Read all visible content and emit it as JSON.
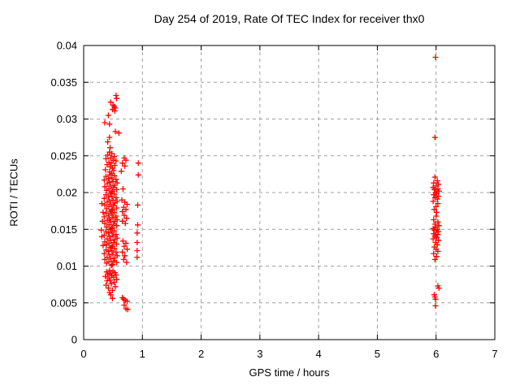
{
  "chart_data": {
    "type": "scatter",
    "title": "Day 254 of 2019, Rate Of TEC Index for receiver thx0",
    "xlabel": "GPS time / hours",
    "ylabel": "ROTI / TECUs",
    "xlim": [
      0,
      7
    ],
    "ylim": [
      0,
      0.04
    ],
    "xticks": [
      0,
      1,
      2,
      3,
      4,
      5,
      6,
      7
    ],
    "xtick_labels": [
      "0",
      "1",
      "2",
      "3",
      "4",
      "5",
      "6",
      "7"
    ],
    "yticks": [
      0,
      0.005,
      0.01,
      0.015,
      0.02,
      0.025,
      0.03,
      0.035,
      0.04
    ],
    "ytick_labels": [
      "0",
      "0.005",
      "0.01",
      "0.015",
      "0.02",
      "0.025",
      "0.03",
      "0.035",
      "0.04"
    ],
    "grid": true,
    "legend_position": "none",
    "marker": {
      "shape": "plus",
      "size": 7,
      "color": "#ff0000"
    },
    "colors": {
      "background": "#ffffff",
      "border": "#000000",
      "grid": "#a0a0a0",
      "text": "#000000"
    },
    "series": [
      {
        "name": "ROTI",
        "points": [
          [
            0.55,
            0.0332
          ],
          [
            0.56,
            0.0328
          ],
          [
            0.46,
            0.0323
          ],
          [
            0.5,
            0.0319
          ],
          [
            0.52,
            0.0317
          ],
          [
            0.54,
            0.0315
          ],
          [
            0.49,
            0.0313
          ],
          [
            0.53,
            0.0311
          ],
          [
            0.42,
            0.0305
          ],
          [
            0.36,
            0.0295
          ],
          [
            0.44,
            0.0293
          ],
          [
            0.54,
            0.0283
          ],
          [
            0.6,
            0.0281
          ],
          [
            0.44,
            0.0275
          ],
          [
            0.41,
            0.0269
          ],
          [
            0.45,
            0.0261
          ],
          [
            0.44,
            0.0255
          ],
          [
            0.48,
            0.0253
          ],
          [
            0.41,
            0.0251
          ],
          [
            0.52,
            0.0249
          ],
          [
            0.46,
            0.0247
          ],
          [
            0.38,
            0.0246
          ],
          [
            0.5,
            0.0244
          ],
          [
            0.55,
            0.0243
          ],
          [
            0.43,
            0.0241
          ],
          [
            0.47,
            0.024
          ],
          [
            0.4,
            0.0238
          ],
          [
            0.53,
            0.0237
          ],
          [
            0.45,
            0.0235
          ],
          [
            0.49,
            0.0233
          ],
          [
            0.37,
            0.0231
          ],
          [
            0.51,
            0.023
          ],
          [
            0.44,
            0.0228
          ],
          [
            0.48,
            0.0226
          ],
          [
            0.45,
            0.0224
          ],
          [
            0.52,
            0.0223
          ],
          [
            0.38,
            0.0222
          ],
          [
            0.48,
            0.022
          ],
          [
            0.42,
            0.0219
          ],
          [
            0.55,
            0.0218
          ],
          [
            0.35,
            0.0217
          ],
          [
            0.5,
            0.0215
          ],
          [
            0.44,
            0.0214
          ],
          [
            0.57,
            0.0213
          ],
          [
            0.4,
            0.0212
          ],
          [
            0.53,
            0.021
          ],
          [
            0.46,
            0.0209
          ],
          [
            0.36,
            0.0208
          ],
          [
            0.51,
            0.0207
          ],
          [
            0.43,
            0.0205
          ],
          [
            0.56,
            0.0204
          ],
          [
            0.39,
            0.0203
          ],
          [
            0.49,
            0.0202
          ],
          [
            0.47,
            0.02
          ],
          [
            0.45,
            0.0199
          ],
          [
            0.52,
            0.0198
          ],
          [
            0.38,
            0.0197
          ],
          [
            0.48,
            0.0195
          ],
          [
            0.42,
            0.0194
          ],
          [
            0.55,
            0.0193
          ],
          [
            0.35,
            0.0192
          ],
          [
            0.5,
            0.019
          ],
          [
            0.44,
            0.0189
          ],
          [
            0.57,
            0.0188
          ],
          [
            0.4,
            0.0187
          ],
          [
            0.53,
            0.0186
          ],
          [
            0.46,
            0.0184
          ],
          [
            0.36,
            0.0183
          ],
          [
            0.51,
            0.0182
          ],
          [
            0.43,
            0.0181
          ],
          [
            0.56,
            0.0179
          ],
          [
            0.39,
            0.0178
          ],
          [
            0.49,
            0.0177
          ],
          [
            0.47,
            0.0176
          ],
          [
            0.45,
            0.0174
          ],
          [
            0.52,
            0.0173
          ],
          [
            0.38,
            0.0172
          ],
          [
            0.48,
            0.0171
          ],
          [
            0.42,
            0.0169
          ],
          [
            0.55,
            0.0168
          ],
          [
            0.35,
            0.0167
          ],
          [
            0.5,
            0.0166
          ],
          [
            0.44,
            0.0164
          ],
          [
            0.57,
            0.0163
          ],
          [
            0.4,
            0.0162
          ],
          [
            0.53,
            0.0161
          ],
          [
            0.46,
            0.016
          ],
          [
            0.36,
            0.0158
          ],
          [
            0.51,
            0.0157
          ],
          [
            0.43,
            0.0156
          ],
          [
            0.56,
            0.0155
          ],
          [
            0.39,
            0.0153
          ],
          [
            0.49,
            0.0152
          ],
          [
            0.47,
            0.0151
          ],
          [
            0.45,
            0.015
          ],
          [
            0.52,
            0.0148
          ],
          [
            0.38,
            0.0147
          ],
          [
            0.48,
            0.0146
          ],
          [
            0.42,
            0.0145
          ],
          [
            0.55,
            0.0143
          ],
          [
            0.35,
            0.0142
          ],
          [
            0.5,
            0.0141
          ],
          [
            0.44,
            0.014
          ],
          [
            0.57,
            0.0138
          ],
          [
            0.4,
            0.0137
          ],
          [
            0.53,
            0.0136
          ],
          [
            0.46,
            0.0135
          ],
          [
            0.36,
            0.0133
          ],
          [
            0.51,
            0.0132
          ],
          [
            0.43,
            0.0131
          ],
          [
            0.56,
            0.013
          ],
          [
            0.39,
            0.0129
          ],
          [
            0.49,
            0.0127
          ],
          [
            0.47,
            0.0126
          ],
          [
            0.45,
            0.0125
          ],
          [
            0.52,
            0.0124
          ],
          [
            0.38,
            0.0122
          ],
          [
            0.48,
            0.0121
          ],
          [
            0.42,
            0.012
          ],
          [
            0.55,
            0.0119
          ],
          [
            0.35,
            0.0117
          ],
          [
            0.5,
            0.0116
          ],
          [
            0.44,
            0.0115
          ],
          [
            0.57,
            0.0114
          ],
          [
            0.4,
            0.0112
          ],
          [
            0.53,
            0.0111
          ],
          [
            0.46,
            0.011
          ],
          [
            0.36,
            0.0109
          ],
          [
            0.51,
            0.0107
          ],
          [
            0.43,
            0.0106
          ],
          [
            0.56,
            0.0105
          ],
          [
            0.39,
            0.0104
          ],
          [
            0.49,
            0.0102
          ],
          [
            0.47,
            0.0101
          ],
          [
            0.31,
            0.0185
          ],
          [
            0.32,
            0.0161
          ],
          [
            0.3,
            0.0149
          ],
          [
            0.33,
            0.0173
          ],
          [
            0.31,
            0.014
          ],
          [
            0.33,
            0.0128
          ],
          [
            0.69,
            0.0247
          ],
          [
            0.72,
            0.0244
          ],
          [
            0.66,
            0.024
          ],
          [
            0.7,
            0.0236
          ],
          [
            0.64,
            0.0229
          ],
          [
            0.67,
            0.0205
          ],
          [
            0.65,
            0.019
          ],
          [
            0.7,
            0.0187
          ],
          [
            0.74,
            0.0184
          ],
          [
            0.68,
            0.018
          ],
          [
            0.72,
            0.0177
          ],
          [
            0.66,
            0.0174
          ],
          [
            0.69,
            0.0169
          ],
          [
            0.73,
            0.0165
          ],
          [
            0.66,
            0.0161
          ],
          [
            0.71,
            0.0158
          ],
          [
            0.67,
            0.0134
          ],
          [
            0.72,
            0.0131
          ],
          [
            0.69,
            0.0127
          ],
          [
            0.74,
            0.0123
          ],
          [
            0.66,
            0.0119
          ],
          [
            0.7,
            0.0114
          ],
          [
            0.68,
            0.0109
          ],
          [
            0.73,
            0.0105
          ],
          [
            0.93,
            0.024
          ],
          [
            0.93,
            0.0224
          ],
          [
            0.92,
            0.0183
          ],
          [
            0.92,
            0.0156
          ],
          [
            0.91,
            0.0145
          ],
          [
            0.91,
            0.0132
          ],
          [
            0.91,
            0.0121
          ],
          [
            0.91,
            0.0112
          ],
          [
            0.44,
            0.0094
          ],
          [
            0.5,
            0.0093
          ],
          [
            0.39,
            0.0092
          ],
          [
            0.53,
            0.0091
          ],
          [
            0.46,
            0.009
          ],
          [
            0.41,
            0.0089
          ],
          [
            0.55,
            0.0088
          ],
          [
            0.48,
            0.0087
          ],
          [
            0.37,
            0.0086
          ],
          [
            0.51,
            0.0085
          ],
          [
            0.43,
            0.0084
          ],
          [
            0.56,
            0.0082
          ],
          [
            0.45,
            0.0081
          ],
          [
            0.4,
            0.008
          ],
          [
            0.52,
            0.0078
          ],
          [
            0.47,
            0.0076
          ],
          [
            0.38,
            0.0074
          ],
          [
            0.54,
            0.0072
          ],
          [
            0.42,
            0.007
          ],
          [
            0.49,
            0.0067
          ],
          [
            0.44,
            0.0064
          ],
          [
            0.46,
            0.0061
          ],
          [
            0.49,
            0.0056
          ],
          [
            0.66,
            0.0057
          ],
          [
            0.68,
            0.0055
          ],
          [
            0.71,
            0.0053
          ],
          [
            0.74,
            0.0052
          ],
          [
            0.69,
            0.0047
          ],
          [
            0.72,
            0.0042
          ],
          [
            0.75,
            0.0041
          ],
          [
            5.99,
            0.0384
          ],
          [
            5.98,
            0.0275
          ],
          [
            5.98,
            0.0221
          ],
          [
            6.02,
            0.0216
          ],
          [
            5.96,
            0.0213
          ],
          [
            6.04,
            0.0211
          ],
          [
            6.0,
            0.0209
          ],
          [
            5.95,
            0.0207
          ],
          [
            6.03,
            0.0205
          ],
          [
            5.97,
            0.0204
          ],
          [
            6.05,
            0.0202
          ],
          [
            5.99,
            0.02
          ],
          [
            6.01,
            0.0199
          ],
          [
            5.96,
            0.0197
          ],
          [
            6.04,
            0.0195
          ],
          [
            5.98,
            0.0193
          ],
          [
            6.02,
            0.0191
          ],
          [
            5.95,
            0.0188
          ],
          [
            6.03,
            0.0185
          ],
          [
            6.0,
            0.0181
          ],
          [
            5.97,
            0.0177
          ],
          [
            6.01,
            0.0173
          ],
          [
            6.0,
            0.0168
          ],
          [
            5.96,
            0.0163
          ],
          [
            6.03,
            0.016
          ],
          [
            5.98,
            0.0157
          ],
          [
            6.05,
            0.0155
          ],
          [
            5.99,
            0.0153
          ],
          [
            5.95,
            0.0151
          ],
          [
            6.02,
            0.015
          ],
          [
            5.97,
            0.0149
          ],
          [
            6.04,
            0.0147
          ],
          [
            6.0,
            0.0146
          ],
          [
            5.96,
            0.0144
          ],
          [
            6.03,
            0.0143
          ],
          [
            5.98,
            0.0141
          ],
          [
            6.01,
            0.0139
          ],
          [
            5.95,
            0.0137
          ],
          [
            6.04,
            0.0135
          ],
          [
            5.99,
            0.0132
          ],
          [
            6.02,
            0.0129
          ],
          [
            5.97,
            0.0126
          ],
          [
            6.0,
            0.0123
          ],
          [
            6.03,
            0.012
          ],
          [
            5.96,
            0.0117
          ],
          [
            6.01,
            0.0113
          ],
          [
            5.98,
            0.0109
          ],
          [
            6.03,
            0.0073
          ],
          [
            6.05,
            0.007
          ],
          [
            5.97,
            0.0061
          ],
          [
            5.98,
            0.0058
          ],
          [
            5.99,
            0.0055
          ],
          [
            5.99,
            0.0046
          ]
        ]
      }
    ]
  }
}
